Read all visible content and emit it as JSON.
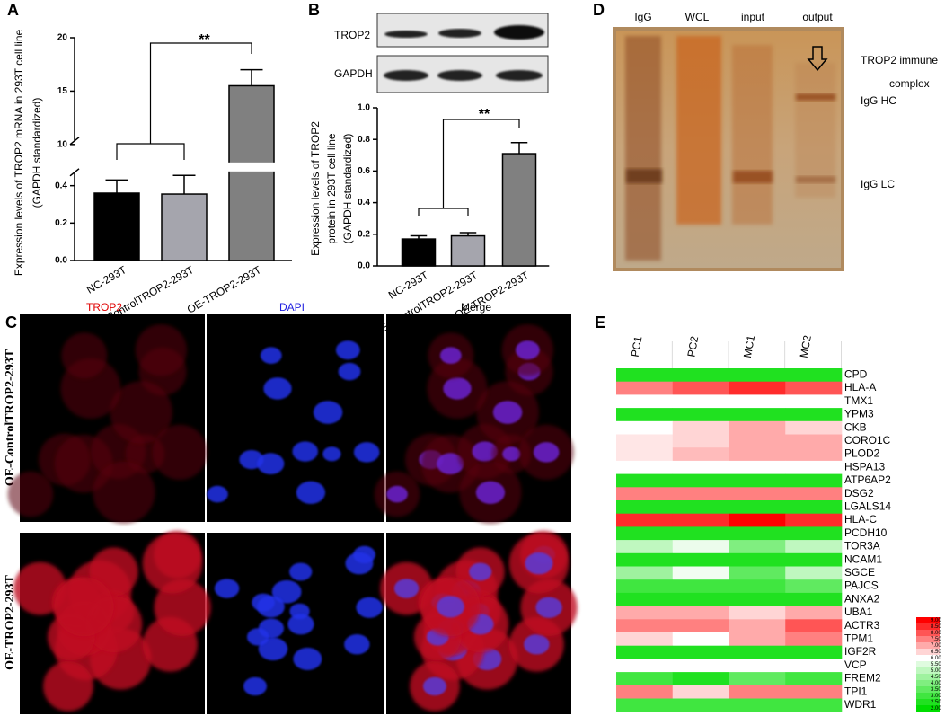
{
  "panel_labels": [
    "A",
    "B",
    "C",
    "D",
    "E"
  ],
  "chart_data": [
    {
      "type": "bar",
      "y_label": [
        "Expression levels of TROP2 mRNA in 293T cell line",
        "(GAPDH standardized)"
      ],
      "categories": [
        "NC-293T",
        "OE-ControlTROP2-293T",
        "OE-TROP2-293T"
      ],
      "values": [
        0.36,
        0.355,
        15.5
      ],
      "errors": [
        0.07,
        0.1,
        1.5
      ],
      "colors": [
        "#000000",
        "#a5a5ad",
        "#808080"
      ],
      "ylim": [
        0,
        20
      ],
      "ybreak": [
        0.5,
        10
      ],
      "yticks": [
        {
          "value": 0,
          "label": "0.0"
        },
        {
          "value": 0.2,
          "label": "0.2"
        },
        {
          "value": 0.4,
          "label": "0.4"
        },
        10,
        15,
        20
      ],
      "annotation": "**"
    },
    {
      "type": "bar",
      "y_label": [
        "Expression levels of TROP2",
        "protein in 293T cell line",
        "(GAPDH standardized)"
      ],
      "categories": [
        "NC-293T",
        "OE-ControlTROP2-293T",
        "OE-TROP2-293T"
      ],
      "values": [
        0.17,
        0.19,
        0.71
      ],
      "errors": [
        0.02,
        0.02,
        0.07
      ],
      "colors": [
        "#000000",
        "#a5a5ad",
        "#808080"
      ],
      "ylim": [
        0,
        1
      ],
      "yticks": [
        {
          "value": 0,
          "label": "0.0"
        },
        {
          "value": 0.2,
          "label": "0.2"
        },
        {
          "value": 0.4,
          "label": "0.4"
        },
        {
          "value": 0.6,
          "label": "0.6"
        },
        {
          "value": 0.8,
          "label": "0.8"
        },
        {
          "value": 1,
          "label": "1.0"
        }
      ],
      "annotation": "**"
    },
    {
      "type": "heatmap",
      "columns": [
        "PC1",
        "PC2",
        "MC1",
        "MC2"
      ],
      "rows": [
        "CPD",
        "HLA-A",
        "TMX1",
        "YPM3",
        "CKB",
        "CORO1C",
        "PLOD2",
        "HSPA13",
        "ATP6AP2",
        "DSG2",
        "LGALS14",
        "HLA-C",
        "PCDH10",
        "TOR3A",
        "NCAM1",
        "SGCE",
        "PAJCS",
        "ANXA2",
        "UBA1",
        "ACTR3",
        "TPM1",
        "IGF2R",
        "VCP",
        "FREM2",
        "TPI1",
        "WDR1"
      ],
      "values": [
        [
          2.5,
          2.5,
          2.5,
          2.5
        ],
        [
          7.5,
          8,
          8.5,
          8
        ],
        [
          6,
          6,
          6,
          6
        ],
        [
          2.5,
          2.5,
          2.5,
          2.5
        ],
        [
          6,
          6.5,
          7,
          6.5
        ],
        [
          6.3,
          6.5,
          7,
          7
        ],
        [
          6.3,
          6.8,
          7,
          7
        ],
        [
          6,
          6,
          6,
          6
        ],
        [
          2.5,
          2.5,
          2.5,
          2.5
        ],
        [
          7.5,
          7.5,
          7.5,
          7.5
        ],
        [
          2.5,
          2.5,
          2.5,
          2.5
        ],
        [
          8.5,
          8.5,
          9,
          8.5
        ],
        [
          2.5,
          2.5,
          2.5,
          2.5
        ],
        [
          5,
          5.7,
          4,
          5
        ],
        [
          2.5,
          2.5,
          2.5,
          2.5
        ],
        [
          4.5,
          5.8,
          3.5,
          5
        ],
        [
          3,
          3,
          3,
          3.5
        ],
        [
          2.5,
          2.5,
          2.5,
          2.5
        ],
        [
          7,
          7,
          6.5,
          7
        ],
        [
          7.5,
          7.5,
          7,
          8
        ],
        [
          6.5,
          6,
          7,
          7.5
        ],
        [
          2.5,
          2.5,
          2.5,
          2.5
        ],
        [
          6,
          6,
          6,
          6
        ],
        [
          3,
          2.5,
          3.5,
          3
        ],
        [
          7.5,
          6.5,
          7.5,
          7.5
        ],
        [
          3,
          3,
          3,
          3
        ]
      ],
      "clim": [
        2,
        9
      ],
      "colorscale": [
        [
          2,
          "#00dd00"
        ],
        [
          6,
          "#ffffff"
        ],
        [
          9,
          "#ff0000"
        ]
      ],
      "cticks": [
        {
          "value": 9,
          "label": "9.00"
        },
        {
          "value": 8.5,
          "label": "8.50"
        },
        {
          "value": 8,
          "label": "8.00"
        },
        {
          "value": 7.5,
          "label": "7.50"
        },
        {
          "value": 7,
          "label": "7.00"
        },
        {
          "value": 6.5,
          "label": "6.50"
        },
        {
          "value": 6,
          "label": "6.00"
        },
        {
          "value": 5.5,
          "label": "5.50"
        },
        {
          "value": 5,
          "label": "5.00"
        },
        {
          "value": 4.5,
          "label": "4.50"
        },
        {
          "value": 4,
          "label": "4.00"
        },
        {
          "value": 3.5,
          "label": "3.50"
        },
        {
          "value": 3,
          "label": "3.00"
        },
        {
          "value": 2.5,
          "label": "2.50"
        },
        {
          "value": 2,
          "label": "2.00"
        }
      ]
    }
  ],
  "blot": {
    "labels": [
      "TROP2",
      "GAPDH"
    ]
  },
  "gel": {
    "lanes": [
      "IgG",
      "WCL",
      "input",
      "output"
    ],
    "annotations": [
      "TROP2 immune",
      "complex",
      "IgG HC",
      "IgG LC"
    ]
  },
  "microscopy": {
    "columns": [
      "TROP2",
      "DAPI",
      "Merge"
    ],
    "rows": [
      "OE-ControlTROP2-293T",
      "OE-TROP2-293T"
    ]
  }
}
